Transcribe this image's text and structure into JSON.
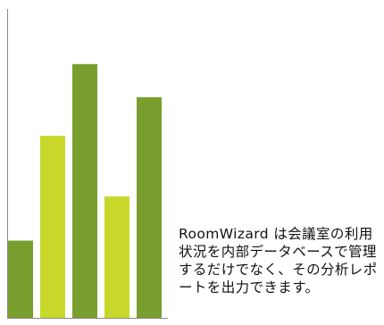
{
  "chart_data": {
    "type": "bar",
    "categories": [
      "",
      "",
      "",
      "",
      "",
      ""
    ],
    "values": [
      1.4,
      3.3,
      4.6,
      2.2,
      4.0,
      0
    ],
    "ylim": [
      0,
      5.6
    ],
    "grid": false,
    "title": "",
    "xlabel": "",
    "ylabel": "",
    "colors": [
      "#7a9e2e",
      "#c8d82a",
      "#7a9e2e",
      "#c8d82a",
      "#7a9e2e"
    ]
  },
  "caption": {
    "text": "RoomWizard は会議室の利用状況を内部データベースで管理するだけでなく、その分析レポートを出力できます。"
  }
}
